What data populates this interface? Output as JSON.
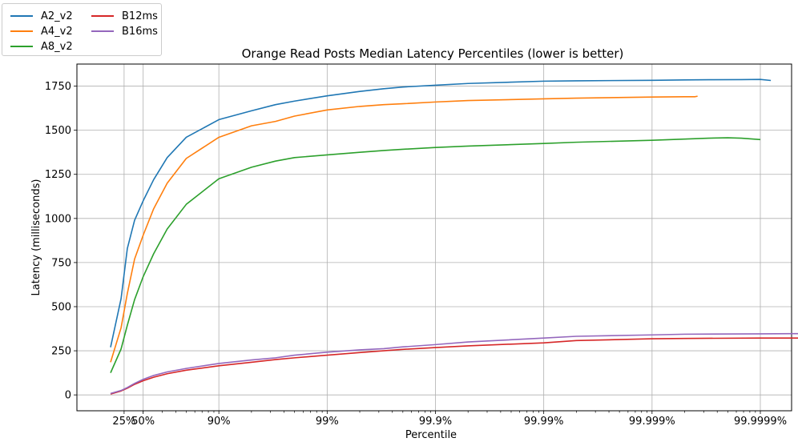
{
  "chart_data": {
    "type": "line",
    "title": "Orange Read Posts Median Latency Percentiles (lower is better)",
    "xlabel": "Percentile",
    "ylabel": "Latency (milliseconds)",
    "x_scale": "inverse-log (1/(1-p))",
    "x_ticks": [
      {
        "p": 25,
        "label": "25%"
      },
      {
        "p": 50,
        "label": "50%"
      },
      {
        "p": 90,
        "label": "90%"
      },
      {
        "p": 99,
        "label": "99%"
      },
      {
        "p": 99.9,
        "label": "99.9%"
      },
      {
        "p": 99.99,
        "label": "99.99%"
      },
      {
        "p": 99.999,
        "label": "99.999%"
      },
      {
        "p": 99.9999,
        "label": "99.9999%"
      }
    ],
    "y_ticks": [
      0,
      250,
      500,
      750,
      1000,
      1250,
      1500,
      1750
    ],
    "ylim": [
      -90,
      1875
    ],
    "grid": true,
    "legend_position": "top-left (outside)",
    "series": [
      {
        "name": "A2_v2",
        "color": "#1f77b4",
        "points": [
          [
            0,
            270
          ],
          [
            20,
            545
          ],
          [
            30,
            830
          ],
          [
            40,
            990
          ],
          [
            50,
            1100
          ],
          [
            60,
            1220
          ],
          [
            70,
            1345
          ],
          [
            80,
            1460
          ],
          [
            90,
            1560
          ],
          [
            95,
            1610
          ],
          [
            97,
            1645
          ],
          [
            98,
            1665
          ],
          [
            99,
            1695
          ],
          [
            99.5,
            1720
          ],
          [
            99.7,
            1735
          ],
          [
            99.8,
            1745
          ],
          [
            99.9,
            1755
          ],
          [
            99.95,
            1765
          ],
          [
            99.99,
            1778
          ],
          [
            99.995,
            1780
          ],
          [
            99.999,
            1783
          ],
          [
            99.9995,
            1785
          ],
          [
            99.9997,
            1786
          ],
          [
            99.99985,
            1787
          ],
          [
            99.9999,
            1788
          ],
          [
            99.99992,
            1782
          ]
        ]
      },
      {
        "name": "A4_v2",
        "color": "#ff7f0e",
        "points": [
          [
            0,
            185
          ],
          [
            20,
            380
          ],
          [
            30,
            575
          ],
          [
            40,
            770
          ],
          [
            50,
            905
          ],
          [
            60,
            1055
          ],
          [
            70,
            1200
          ],
          [
            80,
            1340
          ],
          [
            90,
            1460
          ],
          [
            95,
            1525
          ],
          [
            97,
            1550
          ],
          [
            98,
            1580
          ],
          [
            99,
            1615
          ],
          [
            99.5,
            1635
          ],
          [
            99.7,
            1645
          ],
          [
            99.8,
            1650
          ],
          [
            99.9,
            1660
          ],
          [
            99.95,
            1668
          ],
          [
            99.99,
            1678
          ],
          [
            99.995,
            1682
          ],
          [
            99.999,
            1688
          ],
          [
            99.9995,
            1690
          ],
          [
            99.9996,
            1690
          ],
          [
            99.99962,
            1693
          ]
        ]
      },
      {
        "name": "A8_v2",
        "color": "#2ca02c",
        "points": [
          [
            0,
            125
          ],
          [
            20,
            260
          ],
          [
            30,
            395
          ],
          [
            40,
            540
          ],
          [
            50,
            670
          ],
          [
            60,
            800
          ],
          [
            70,
            940
          ],
          [
            80,
            1080
          ],
          [
            90,
            1225
          ],
          [
            95,
            1290
          ],
          [
            97,
            1325
          ],
          [
            98,
            1345
          ],
          [
            99,
            1360
          ],
          [
            99.5,
            1375
          ],
          [
            99.7,
            1385
          ],
          [
            99.8,
            1392
          ],
          [
            99.9,
            1402
          ],
          [
            99.95,
            1410
          ],
          [
            99.99,
            1425
          ],
          [
            99.995,
            1432
          ],
          [
            99.999,
            1443
          ],
          [
            99.9995,
            1450
          ],
          [
            99.9997,
            1455
          ],
          [
            99.9998,
            1457
          ],
          [
            99.99985,
            1455
          ],
          [
            99.9999,
            1447
          ]
        ]
      },
      {
        "name": "B12ms",
        "color": "#d62728",
        "points": [
          [
            0,
            5
          ],
          [
            20,
            22
          ],
          [
            30,
            38
          ],
          [
            40,
            60
          ],
          [
            50,
            80
          ],
          [
            60,
            100
          ],
          [
            70,
            120
          ],
          [
            80,
            140
          ],
          [
            90,
            165
          ],
          [
            95,
            185
          ],
          [
            97,
            200
          ],
          [
            98,
            210
          ],
          [
            99,
            225
          ],
          [
            99.5,
            240
          ],
          [
            99.7,
            250
          ],
          [
            99.8,
            258
          ],
          [
            99.9,
            268
          ],
          [
            99.95,
            278
          ],
          [
            99.99,
            295
          ],
          [
            99.995,
            308
          ],
          [
            99.999,
            318
          ],
          [
            99.9995,
            320
          ],
          [
            99.9999,
            322
          ],
          [
            99.99995,
            322
          ],
          [
            99.99999,
            322
          ],
          [
            99.99999,
            312
          ],
          [
            99.99999,
            330
          ]
        ]
      },
      {
        "name": "B16ms",
        "color": "#9467bd",
        "points": [
          [
            0,
            8
          ],
          [
            20,
            25
          ],
          [
            30,
            42
          ],
          [
            40,
            65
          ],
          [
            50,
            88
          ],
          [
            60,
            110
          ],
          [
            70,
            130
          ],
          [
            80,
            150
          ],
          [
            90,
            178
          ],
          [
            95,
            198
          ],
          [
            97,
            210
          ],
          [
            98,
            225
          ],
          [
            99,
            242
          ],
          [
            99.5,
            255
          ],
          [
            99.7,
            262
          ],
          [
            99.8,
            272
          ],
          [
            99.9,
            285
          ],
          [
            99.95,
            300
          ],
          [
            99.99,
            322
          ],
          [
            99.995,
            332
          ],
          [
            99.999,
            340
          ],
          [
            99.9995,
            344
          ],
          [
            99.9999,
            346
          ],
          [
            99.99995,
            347
          ],
          [
            99.99999,
            347
          ]
        ]
      }
    ]
  }
}
